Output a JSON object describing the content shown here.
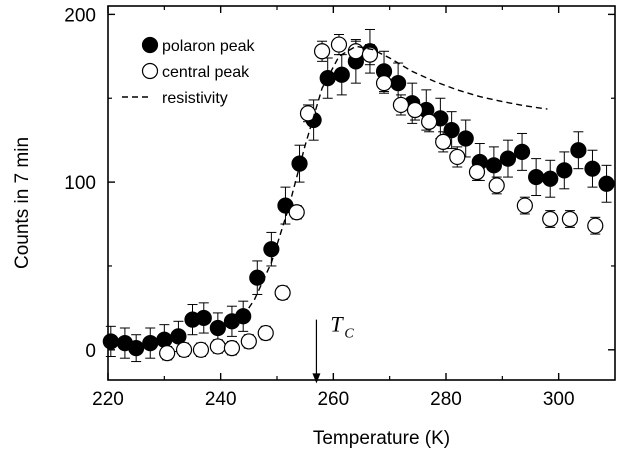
{
  "chart_data": {
    "type": "scatter",
    "xlabel": "Temperature (K)",
    "ylabel": "Counts in 7 min",
    "xlim": [
      220,
      310
    ],
    "ylim": [
      -18,
      205
    ],
    "xticks": [
      "220",
      "240",
      "260",
      "280",
      "300"
    ],
    "xtick_values": [
      220,
      240,
      260,
      280,
      300
    ],
    "yticks": [
      "0",
      "100",
      "200"
    ],
    "ytick_values": [
      0,
      100,
      200
    ],
    "legend_position": "top-left",
    "grid": false,
    "series": [
      {
        "name": "polaron peak",
        "marker": "filled-circle",
        "color": "#000000",
        "points": [
          {
            "x": 220.5,
            "y": 5,
            "err": 9
          },
          {
            "x": 223,
            "y": 4,
            "err": 9
          },
          {
            "x": 225,
            "y": 1,
            "err": 8
          },
          {
            "x": 227.5,
            "y": 4,
            "err": 9
          },
          {
            "x": 230,
            "y": 6,
            "err": 9
          },
          {
            "x": 232.5,
            "y": 8,
            "err": 9
          },
          {
            "x": 235,
            "y": 18,
            "err": 9
          },
          {
            "x": 237,
            "y": 19,
            "err": 9
          },
          {
            "x": 239.5,
            "y": 13,
            "err": 9
          },
          {
            "x": 242,
            "y": 17,
            "err": 9
          },
          {
            "x": 244,
            "y": 20,
            "err": 9
          },
          {
            "x": 246.5,
            "y": 43,
            "err": 10
          },
          {
            "x": 249,
            "y": 60,
            "err": 10
          },
          {
            "x": 251.5,
            "y": 86,
            "err": 11
          },
          {
            "x": 254,
            "y": 111,
            "err": 11
          },
          {
            "x": 256.5,
            "y": 137,
            "err": 12
          },
          {
            "x": 259,
            "y": 162,
            "err": 12
          },
          {
            "x": 261.5,
            "y": 164,
            "err": 12
          },
          {
            "x": 264,
            "y": 172,
            "err": 13
          },
          {
            "x": 266.5,
            "y": 178,
            "err": 13
          },
          {
            "x": 269,
            "y": 166,
            "err": 12
          },
          {
            "x": 271.5,
            "y": 159,
            "err": 12
          },
          {
            "x": 274,
            "y": 147,
            "err": 12
          },
          {
            "x": 276.5,
            "y": 143,
            "err": 12
          },
          {
            "x": 279,
            "y": 138,
            "err": 12
          },
          {
            "x": 281,
            "y": 131,
            "err": 11
          },
          {
            "x": 283.5,
            "y": 126,
            "err": 11
          },
          {
            "x": 286,
            "y": 112,
            "err": 11
          },
          {
            "x": 288.5,
            "y": 110,
            "err": 11
          },
          {
            "x": 291,
            "y": 114,
            "err": 11
          },
          {
            "x": 293.5,
            "y": 118,
            "err": 11
          },
          {
            "x": 296,
            "y": 103,
            "err": 11
          },
          {
            "x": 298.5,
            "y": 102,
            "err": 11
          },
          {
            "x": 301,
            "y": 107,
            "err": 11
          },
          {
            "x": 303.5,
            "y": 119,
            "err": 11
          },
          {
            "x": 306,
            "y": 108,
            "err": 11
          },
          {
            "x": 308.5,
            "y": 99,
            "err": 11
          }
        ]
      },
      {
        "name": "central peak",
        "marker": "open-circle",
        "color": "#000000",
        "points": [
          {
            "x": 230.5,
            "y": -2,
            "err": 4
          },
          {
            "x": 233.5,
            "y": 0,
            "err": 4
          },
          {
            "x": 236.5,
            "y": 0,
            "err": 4
          },
          {
            "x": 239.5,
            "y": 2,
            "err": 4
          },
          {
            "x": 242,
            "y": 1,
            "err": 4
          },
          {
            "x": 245,
            "y": 5,
            "err": 4
          },
          {
            "x": 248,
            "y": 10,
            "err": 4
          },
          {
            "x": 251,
            "y": 34,
            "err": 4
          },
          {
            "x": 253.5,
            "y": 82,
            "err": 4
          },
          {
            "x": 255.5,
            "y": 141,
            "err": 5
          },
          {
            "x": 258,
            "y": 178,
            "err": 6
          },
          {
            "x": 261,
            "y": 182,
            "err": 6
          },
          {
            "x": 264,
            "y": 178,
            "err": 6
          },
          {
            "x": 266.5,
            "y": 176,
            "err": 6
          },
          {
            "x": 269,
            "y": 159,
            "err": 6
          },
          {
            "x": 272,
            "y": 146,
            "err": 6
          },
          {
            "x": 274.5,
            "y": 143,
            "err": 6
          },
          {
            "x": 277,
            "y": 136,
            "err": 6
          },
          {
            "x": 279.5,
            "y": 124,
            "err": 6
          },
          {
            "x": 282,
            "y": 115,
            "err": 6
          },
          {
            "x": 285.5,
            "y": 106,
            "err": 5
          },
          {
            "x": 289,
            "y": 98,
            "err": 5
          },
          {
            "x": 294,
            "y": 86,
            "err": 5
          },
          {
            "x": 298.5,
            "y": 78,
            "err": 5
          },
          {
            "x": 302,
            "y": 78,
            "err": 5
          },
          {
            "x": 306.5,
            "y": 74,
            "err": 5
          }
        ]
      },
      {
        "name": "resistivity",
        "style": "dashed-line",
        "color": "#000000",
        "points": [
          {
            "x": 243,
            "y": 15
          },
          {
            "x": 246,
            "y": 30
          },
          {
            "x": 249,
            "y": 52
          },
          {
            "x": 252,
            "y": 84
          },
          {
            "x": 255,
            "y": 122
          },
          {
            "x": 258,
            "y": 156
          },
          {
            "x": 261,
            "y": 175
          },
          {
            "x": 264,
            "y": 181
          },
          {
            "x": 267,
            "y": 179
          },
          {
            "x": 270,
            "y": 174
          },
          {
            "x": 274,
            "y": 166
          },
          {
            "x": 278,
            "y": 160
          },
          {
            "x": 282,
            "y": 155
          },
          {
            "x": 286,
            "y": 151
          },
          {
            "x": 290,
            "y": 148
          },
          {
            "x": 294,
            "y": 145.5
          },
          {
            "x": 298,
            "y": 143.5
          }
        ]
      }
    ],
    "annotations": [
      {
        "name": "Tc marker",
        "label": "T",
        "subscript": "C",
        "x": 257,
        "arrow_from_y": 18,
        "arrow_to_y": -20
      }
    ]
  }
}
